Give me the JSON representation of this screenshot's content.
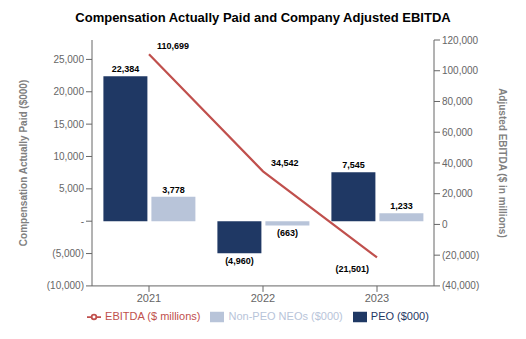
{
  "chart_data": {
    "type": "bar",
    "title": "Compensation Actually Paid and Company Adjusted EBITDA",
    "categories": [
      "2021",
      "2022",
      "2023"
    ],
    "series": [
      {
        "name": "PEO ($000)",
        "color": "#1f3864",
        "values": [
          22384,
          -4960,
          7545
        ],
        "value_labels": [
          "22,384",
          "(4,960)",
          "7,545"
        ]
      },
      {
        "name": "Non-PEO NEOs ($000)",
        "color": "#b8c4d9",
        "values": [
          3778,
          -663,
          1233
        ],
        "value_labels": [
          "3,778",
          "(663)",
          "1,233"
        ]
      },
      {
        "name": "EBITDA ($ millions)",
        "type": "line",
        "axis": "y2",
        "color": "#c0504d",
        "values": [
          110699,
          34542,
          -21501
        ],
        "value_labels": [
          "110,699",
          "34,542",
          "(21,501)"
        ]
      }
    ],
    "ylabel": "Compensation Actually Paid ($000)",
    "y2label": "Adjusted EBITDA ($ in millions)",
    "ylim": [
      -10000,
      28000
    ],
    "yticks": [
      {
        "value": -10000,
        "label": "(10,000)"
      },
      {
        "value": -5000,
        "label": "(5,000)"
      },
      {
        "value": 0,
        "label": "-"
      },
      {
        "value": 5000,
        "label": "5,000"
      },
      {
        "value": 10000,
        "label": "10,000"
      },
      {
        "value": 15000,
        "label": "15,000"
      },
      {
        "value": 20000,
        "label": "20,000"
      },
      {
        "value": 25000,
        "label": "25,000"
      }
    ],
    "y2lim": [
      -40000,
      120000
    ],
    "y2ticks": [
      {
        "value": -40000,
        "label": "(40,000)"
      },
      {
        "value": -20000,
        "label": "(20,000)"
      },
      0,
      {
        "value": 20000,
        "label": "20,000"
      },
      {
        "value": 40000,
        "label": "40,000"
      },
      {
        "value": 60000,
        "label": "60,000"
      },
      {
        "value": 80000,
        "label": "80,000"
      },
      {
        "value": 100000,
        "label": "100,000"
      },
      {
        "value": 120000,
        "label": "120,000"
      }
    ],
    "data_labels": true,
    "legend": "bottom",
    "grid": false
  }
}
